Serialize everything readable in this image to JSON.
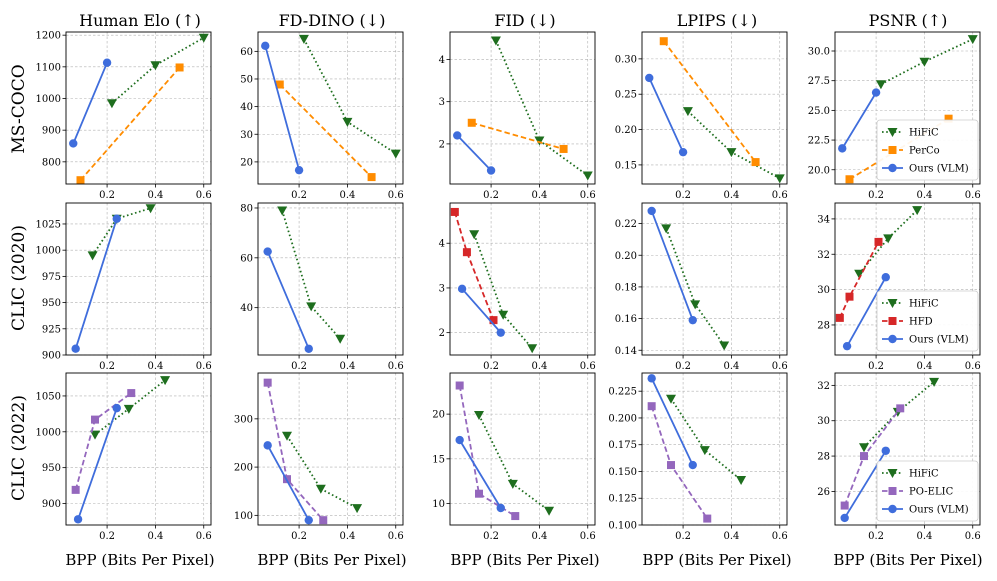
{
  "chart_data": {
    "type": "line",
    "x_axis_label": "BPP (Bits Per Pixel)",
    "columns": [
      {
        "title": "Human Elo (↑)",
        "metric": "Human Elo"
      },
      {
        "title": "FD-DINO (↓)",
        "metric": "FD-DINO"
      },
      {
        "title": "FID (↓)",
        "metric": "FID"
      },
      {
        "title": "LPIPS (↓)",
        "metric": "LPIPS"
      },
      {
        "title": "PSNR (↑)",
        "metric": "PSNR"
      }
    ],
    "rows": [
      {
        "label": "MS-COCO",
        "legend": [
          "HiFiC",
          "PerCo",
          "Ours (VLM)"
        ]
      },
      {
        "label": "CLIC (2020)",
        "legend": [
          "HiFiC",
          "HFD",
          "Ours (VLM)"
        ]
      },
      {
        "label": "CLIC (2022)",
        "legend": [
          "HiFiC",
          "PO-ELIC",
          "Ours (VLM)"
        ]
      }
    ],
    "series_styles": {
      "HiFiC": {
        "color": "#1e6e1e",
        "marker": "triangle-down",
        "dash": "dotted"
      },
      "PerCo": {
        "color": "#ff8c00",
        "marker": "square",
        "dash": "dashed"
      },
      "HFD": {
        "color": "#d62728",
        "marker": "square",
        "dash": "dashed"
      },
      "PO-ELIC": {
        "color": "#9467bd",
        "marker": "square",
        "dash": "dashed"
      },
      "Ours (VLM)": {
        "color": "#3f6ddc",
        "marker": "circle",
        "dash": "solid"
      }
    },
    "panels": [
      {
        "row": 0,
        "col": 0,
        "xlim": [
          0.03,
          0.63
        ],
        "ylim": [
          730,
          1210
        ],
        "xticks": [
          "0.2",
          "0.4",
          "0.6"
        ],
        "xtick_values": [
          0.2,
          0.4,
          0.6
        ],
        "yticks": [
          "800",
          "900",
          "1000",
          "1100",
          "1200"
        ],
        "ytick_values": [
          800,
          900,
          1000,
          1100,
          1200
        ],
        "series": [
          {
            "name": "HiFiC",
            "x": [
              0.22,
              0.4,
              0.6
            ],
            "y": [
              985,
              1105,
              1192
            ]
          },
          {
            "name": "PerCo",
            "x": [
              0.09,
              0.5
            ],
            "y": [
              742,
              1098
            ]
          },
          {
            "name": "Ours (VLM)",
            "x": [
              0.06,
              0.2
            ],
            "y": [
              858,
              1113
            ]
          }
        ]
      },
      {
        "row": 0,
        "col": 1,
        "xlim": [
          0.03,
          0.63
        ],
        "ylim": [
          12,
          67
        ],
        "xticks": [
          "0.2",
          "0.4",
          "0.6"
        ],
        "xtick_values": [
          0.2,
          0.4,
          0.6
        ],
        "yticks": [
          "20",
          "30",
          "40",
          "50",
          "60"
        ],
        "ytick_values": [
          20,
          30,
          40,
          50,
          60
        ],
        "series": [
          {
            "name": "HiFiC",
            "x": [
              0.22,
              0.4,
              0.6
            ],
            "y": [
              64.5,
              34.5,
              23
            ]
          },
          {
            "name": "PerCo",
            "x": [
              0.12,
              0.5
            ],
            "y": [
              48,
              14.5
            ]
          },
          {
            "name": "Ours (VLM)",
            "x": [
              0.06,
              0.2
            ],
            "y": [
              62,
              17
            ]
          }
        ]
      },
      {
        "row": 0,
        "col": 2,
        "xlim": [
          0.03,
          0.63
        ],
        "ylim": [
          1.05,
          4.65
        ],
        "xticks": [
          "0.2",
          "0.4",
          "0.6"
        ],
        "xtick_values": [
          0.2,
          0.4,
          0.6
        ],
        "yticks": [
          "2",
          "3",
          "4"
        ],
        "ytick_values": [
          2,
          3,
          4
        ],
        "series": [
          {
            "name": "HiFiC",
            "x": [
              0.22,
              0.4,
              0.6
            ],
            "y": [
              4.45,
              2.08,
              1.25
            ]
          },
          {
            "name": "PerCo",
            "x": [
              0.12,
              0.5
            ],
            "y": [
              2.5,
              1.88
            ]
          },
          {
            "name": "Ours (VLM)",
            "x": [
              0.06,
              0.2
            ],
            "y": [
              2.2,
              1.37
            ]
          }
        ]
      },
      {
        "row": 0,
        "col": 3,
        "xlim": [
          0.03,
          0.63
        ],
        "ylim": [
          0.123,
          0.338
        ],
        "xticks": [
          "0.2",
          "0.4",
          "0.6"
        ],
        "xtick_values": [
          0.2,
          0.4,
          0.6
        ],
        "yticks": [
          "0.15",
          "0.20",
          "0.25",
          "0.30"
        ],
        "ytick_values": [
          0.15,
          0.2,
          0.25,
          0.3
        ],
        "series": [
          {
            "name": "HiFiC",
            "x": [
              0.22,
              0.4,
              0.6
            ],
            "y": [
              0.226,
              0.168,
              0.131
            ]
          },
          {
            "name": "PerCo",
            "x": [
              0.12,
              0.5
            ],
            "y": [
              0.325,
              0.154
            ]
          },
          {
            "name": "Ours (VLM)",
            "x": [
              0.06,
              0.2
            ],
            "y": [
              0.273,
              0.168
            ]
          }
        ]
      },
      {
        "row": 0,
        "col": 4,
        "xlim": [
          0.03,
          0.63
        ],
        "ylim": [
          18.8,
          31.6
        ],
        "xticks": [
          "0.2",
          "0.4",
          "0.6"
        ],
        "xtick_values": [
          0.2,
          0.4,
          0.6
        ],
        "yticks": [
          "20.0",
          "22.5",
          "25.0",
          "27.5",
          "30.0"
        ],
        "ytick_values": [
          20.0,
          22.5,
          25.0,
          27.5,
          30.0
        ],
        "series": [
          {
            "name": "HiFiC",
            "x": [
              0.22,
              0.4,
              0.6
            ],
            "y": [
              27.2,
              29.1,
              31.0
            ]
          },
          {
            "name": "PerCo",
            "x": [
              0.09,
              0.5
            ],
            "y": [
              19.2,
              24.3
            ]
          },
          {
            "name": "Ours (VLM)",
            "x": [
              0.06,
              0.2
            ],
            "y": [
              21.8,
              26.5
            ]
          }
        ]
      },
      {
        "row": 1,
        "col": 0,
        "xlim": [
          0.03,
          0.63
        ],
        "ylim": [
          900,
          1045
        ],
        "xticks": [
          "0.2",
          "0.4",
          "0.6"
        ],
        "xtick_values": [
          0.2,
          0.4,
          0.6
        ],
        "yticks": [
          "900",
          "925",
          "950",
          "975",
          "1000",
          "1025"
        ],
        "ytick_values": [
          900,
          925,
          950,
          975,
          1000,
          1025
        ],
        "series": [
          {
            "name": "HiFiC",
            "x": [
              0.14,
              0.24,
              0.38
            ],
            "y": [
              995,
              1030,
              1040
            ]
          },
          {
            "name": "Ours (VLM)",
            "x": [
              0.07,
              0.24
            ],
            "y": [
              906,
              1030
            ]
          }
        ]
      },
      {
        "row": 1,
        "col": 1,
        "xlim": [
          0.03,
          0.63
        ],
        "ylim": [
          21,
          82
        ],
        "xticks": [
          "0.2",
          "0.4",
          "0.6"
        ],
        "xtick_values": [
          0.2,
          0.4,
          0.6
        ],
        "yticks": [
          "40",
          "60",
          "80"
        ],
        "ytick_values": [
          40,
          60,
          80
        ],
        "series": [
          {
            "name": "HiFiC",
            "x": [
              0.13,
              0.25,
              0.37
            ],
            "y": [
              79,
              40.5,
              27.5
            ]
          },
          {
            "name": "Ours (VLM)",
            "x": [
              0.07,
              0.24
            ],
            "y": [
              62.5,
              23.5
            ]
          }
        ]
      },
      {
        "row": 1,
        "col": 2,
        "xlim": [
          0.03,
          0.63
        ],
        "ylim": [
          1.5,
          4.9
        ],
        "xticks": [
          "0.2",
          "0.4",
          "0.6"
        ],
        "xtick_values": [
          0.2,
          0.4,
          0.6
        ],
        "yticks": [
          "2",
          "3",
          "4"
        ],
        "ytick_values": [
          2,
          3,
          4
        ],
        "series": [
          {
            "name": "HiFiC",
            "x": [
              0.13,
              0.25,
              0.37
            ],
            "y": [
              4.2,
              2.4,
              1.65
            ]
          },
          {
            "name": "HFD",
            "x": [
              0.05,
              0.1,
              0.21
            ],
            "y": [
              4.7,
              3.8,
              2.28
            ]
          },
          {
            "name": "Ours (VLM)",
            "x": [
              0.08,
              0.24
            ],
            "y": [
              2.98,
              2.0
            ]
          }
        ]
      },
      {
        "row": 1,
        "col": 3,
        "xlim": [
          0.03,
          0.63
        ],
        "ylim": [
          0.137,
          0.233
        ],
        "xticks": [
          "0.2",
          "0.4",
          "0.6"
        ],
        "xtick_values": [
          0.2,
          0.4,
          0.6
        ],
        "yticks": [
          "0.14",
          "0.16",
          "0.18",
          "0.20",
          "0.22"
        ],
        "ytick_values": [
          0.14,
          0.16,
          0.18,
          0.2,
          0.22
        ],
        "series": [
          {
            "name": "HiFiC",
            "x": [
              0.13,
              0.25,
              0.37
            ],
            "y": [
              0.217,
              0.169,
              0.143
            ]
          },
          {
            "name": "Ours (VLM)",
            "x": [
              0.07,
              0.24
            ],
            "y": [
              0.228,
              0.159
            ]
          }
        ]
      },
      {
        "row": 1,
        "col": 4,
        "xlim": [
          0.03,
          0.63
        ],
        "ylim": [
          26.3,
          34.9
        ],
        "xticks": [
          "0.2",
          "0.4",
          "0.6"
        ],
        "xtick_values": [
          0.2,
          0.4,
          0.6
        ],
        "yticks": [
          "28",
          "30",
          "32",
          "34"
        ],
        "ytick_values": [
          28,
          30,
          32,
          34
        ],
        "series": [
          {
            "name": "HiFiC",
            "x": [
              0.13,
              0.25,
              0.37
            ],
            "y": [
              30.9,
              32.9,
              34.5
            ]
          },
          {
            "name": "HFD",
            "x": [
              0.05,
              0.09,
              0.21
            ],
            "y": [
              28.4,
              29.6,
              32.7
            ]
          },
          {
            "name": "Ours (VLM)",
            "x": [
              0.08,
              0.24
            ],
            "y": [
              26.8,
              30.7
            ]
          }
        ]
      },
      {
        "row": 2,
        "col": 0,
        "xlim": [
          0.03,
          0.63
        ],
        "ylim": [
          870,
          1082
        ],
        "xticks": [
          "0.2",
          "0.4",
          "0.6"
        ],
        "xtick_values": [
          0.2,
          0.4,
          0.6
        ],
        "yticks": [
          "900",
          "950",
          "1000",
          "1050"
        ],
        "ytick_values": [
          900,
          950,
          1000,
          1050
        ],
        "series": [
          {
            "name": "HiFiC",
            "x": [
              0.15,
              0.29,
              0.44
            ],
            "y": [
              996,
              1032,
              1072
            ]
          },
          {
            "name": "PO-ELIC",
            "x": [
              0.07,
              0.15,
              0.3
            ],
            "y": [
              919,
              1017,
              1054
            ]
          },
          {
            "name": "Ours (VLM)",
            "x": [
              0.08,
              0.24
            ],
            "y": [
              878,
              1033
            ]
          }
        ]
      },
      {
        "row": 2,
        "col": 1,
        "xlim": [
          0.03,
          0.63
        ],
        "ylim": [
          80,
          395
        ],
        "xticks": [
          "0.2",
          "0.4",
          "0.6"
        ],
        "xtick_values": [
          0.2,
          0.4,
          0.6
        ],
        "yticks": [
          "100",
          "200",
          "300"
        ],
        "ytick_values": [
          100,
          200,
          300
        ],
        "series": [
          {
            "name": "HiFiC",
            "x": [
              0.15,
              0.29,
              0.44
            ],
            "y": [
              265,
              155,
              115
            ]
          },
          {
            "name": "PO-ELIC",
            "x": [
              0.07,
              0.15,
              0.3
            ],
            "y": [
              375,
              175,
              90
            ]
          },
          {
            "name": "Ours (VLM)",
            "x": [
              0.07,
              0.24
            ],
            "y": [
              245,
              90
            ]
          }
        ]
      },
      {
        "row": 2,
        "col": 2,
        "xlim": [
          0.03,
          0.63
        ],
        "ylim": [
          7.6,
          24.6
        ],
        "xticks": [
          "0.2",
          "0.4",
          "0.6"
        ],
        "xtick_values": [
          0.2,
          0.4,
          0.6
        ],
        "yticks": [
          "10",
          "15",
          "20"
        ],
        "ytick_values": [
          10,
          15,
          20
        ],
        "series": [
          {
            "name": "HiFiC",
            "x": [
              0.15,
              0.29,
              0.44
            ],
            "y": [
              19.9,
              12.2,
              9.2
            ]
          },
          {
            "name": "PO-ELIC",
            "x": [
              0.07,
              0.15,
              0.3
            ],
            "y": [
              23.2,
              11.1,
              8.6
            ]
          },
          {
            "name": "Ours (VLM)",
            "x": [
              0.07,
              0.24
            ],
            "y": [
              17.1,
              9.5
            ]
          }
        ]
      },
      {
        "row": 2,
        "col": 3,
        "xlim": [
          0.03,
          0.63
        ],
        "ylim": [
          0.1,
          0.242
        ],
        "xticks": [
          "0.2",
          "0.4",
          "0.6"
        ],
        "xtick_values": [
          0.2,
          0.4,
          0.6
        ],
        "yticks": [
          "0.100",
          "0.125",
          "0.150",
          "0.175",
          "0.200",
          "0.225"
        ],
        "ytick_values": [
          0.1,
          0.125,
          0.15,
          0.175,
          0.2,
          0.225
        ],
        "series": [
          {
            "name": "HiFiC",
            "x": [
              0.15,
              0.29,
              0.44
            ],
            "y": [
              0.218,
              0.17,
              0.142
            ]
          },
          {
            "name": "PO-ELIC",
            "x": [
              0.07,
              0.15,
              0.3
            ],
            "y": [
              0.211,
              0.156,
              0.106
            ]
          },
          {
            "name": "Ours (VLM)",
            "x": [
              0.07,
              0.24
            ],
            "y": [
              0.237,
              0.156
            ]
          }
        ]
      },
      {
        "row": 2,
        "col": 4,
        "xlim": [
          0.03,
          0.63
        ],
        "ylim": [
          24.1,
          32.7
        ],
        "xticks": [
          "0.2",
          "0.4",
          "0.6"
        ],
        "xtick_values": [
          0.2,
          0.4,
          0.6
        ],
        "yticks": [
          "26",
          "28",
          "30",
          "32"
        ],
        "ytick_values": [
          26,
          28,
          30,
          32
        ],
        "series": [
          {
            "name": "HiFiC",
            "x": [
              0.15,
              0.29,
              0.44
            ],
            "y": [
              28.5,
              30.5,
              32.2
            ]
          },
          {
            "name": "PO-ELIC",
            "x": [
              0.07,
              0.15,
              0.3
            ],
            "y": [
              25.2,
              28.0,
              30.7
            ]
          },
          {
            "name": "Ours (VLM)",
            "x": [
              0.07,
              0.24
            ],
            "y": [
              24.5,
              28.3
            ]
          }
        ]
      }
    ]
  }
}
